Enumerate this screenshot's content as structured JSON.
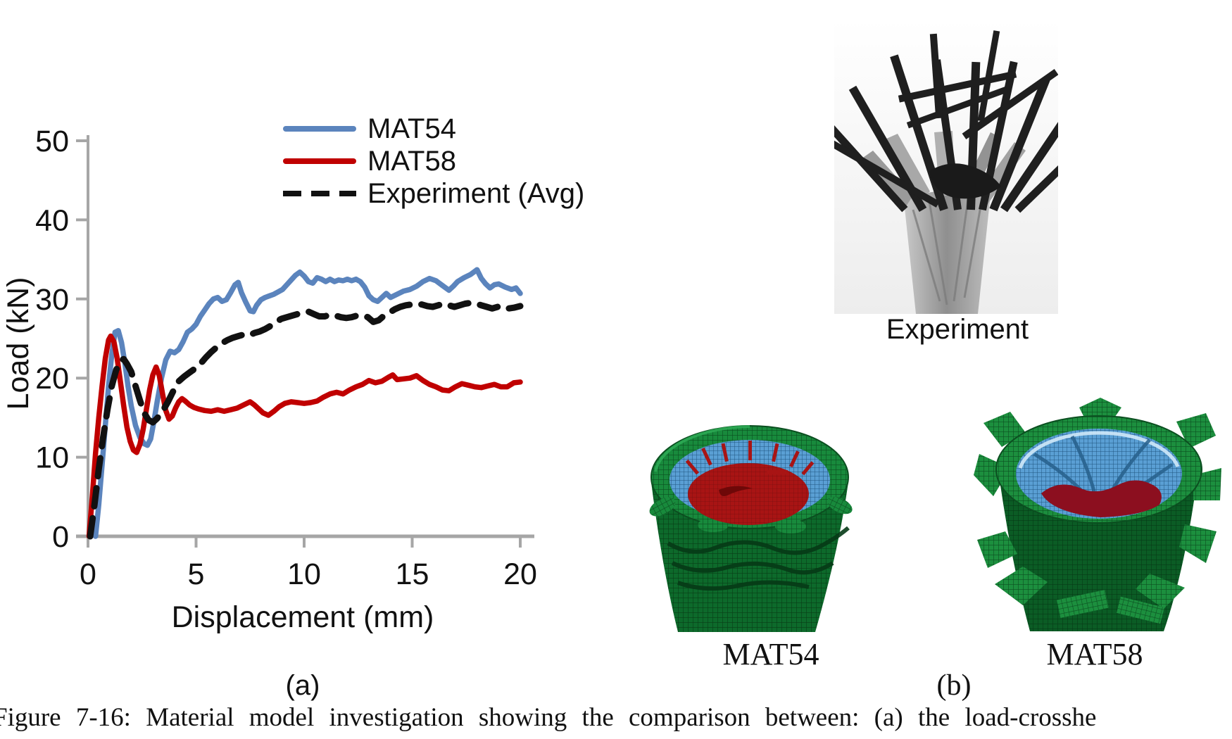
{
  "figure": {
    "caption": "Figure 7-16: Material model investigation showing the comparison between: (a) the load-crosshe",
    "panel_a_label": "(a)",
    "panel_b_label": "(b)"
  },
  "panel_b": {
    "experiment_label": "Experiment",
    "mat54_label": "MAT54",
    "mat58_label": "MAT58"
  },
  "colors": {
    "mat54_line": "#5b84bd",
    "mat58_line": "#c00000",
    "experiment_line": "#111111",
    "axis_gray": "#a6a6a6",
    "sim_green": "#188a3c",
    "sim_blue": "#5a9fd4",
    "sim_red": "#a81414"
  },
  "chart_data": {
    "type": "line",
    "title": "",
    "xlabel": "Displacement (mm)",
    "ylabel": "Load (kN)",
    "xlim": [
      0,
      20
    ],
    "ylim": [
      0,
      50
    ],
    "x_ticks": [
      0,
      5,
      10,
      15,
      20
    ],
    "y_ticks": [
      0,
      10,
      20,
      30,
      40,
      50
    ],
    "grid": false,
    "legend_position": "top-right-inside",
    "series": [
      {
        "name": "MAT54",
        "color": "#5b84bd",
        "style": "solid",
        "points": [
          [
            0.35,
            0
          ],
          [
            0.5,
            4
          ],
          [
            0.65,
            9
          ],
          [
            0.8,
            14
          ],
          [
            0.95,
            19
          ],
          [
            1.1,
            23
          ],
          [
            1.25,
            25.8
          ],
          [
            1.4,
            26
          ],
          [
            1.55,
            24.5
          ],
          [
            1.7,
            22
          ],
          [
            1.85,
            19
          ],
          [
            2.0,
            16.5
          ],
          [
            2.2,
            14
          ],
          [
            2.4,
            12.5
          ],
          [
            2.6,
            11.7
          ],
          [
            2.75,
            11.5
          ],
          [
            2.9,
            12.3
          ],
          [
            3.05,
            14.5
          ],
          [
            3.2,
            17
          ],
          [
            3.4,
            20
          ],
          [
            3.6,
            22.3
          ],
          [
            3.8,
            23.4
          ],
          [
            4.0,
            23.2
          ],
          [
            4.2,
            23.6
          ],
          [
            4.4,
            24.6
          ],
          [
            4.6,
            25.8
          ],
          [
            4.8,
            26.2
          ],
          [
            5.0,
            26.8
          ],
          [
            5.2,
            27.8
          ],
          [
            5.4,
            28.6
          ],
          [
            5.6,
            29.4
          ],
          [
            5.8,
            30.0
          ],
          [
            6.0,
            30.2
          ],
          [
            6.2,
            29.7
          ],
          [
            6.4,
            29.9
          ],
          [
            6.6,
            30.8
          ],
          [
            6.8,
            31.8
          ],
          [
            6.95,
            32.1
          ],
          [
            7.1,
            30.8
          ],
          [
            7.3,
            29.6
          ],
          [
            7.5,
            28.5
          ],
          [
            7.65,
            28.4
          ],
          [
            7.8,
            29.2
          ],
          [
            8.0,
            29.9
          ],
          [
            8.2,
            30.2
          ],
          [
            8.4,
            30.4
          ],
          [
            8.6,
            30.6
          ],
          [
            8.8,
            30.9
          ],
          [
            9.0,
            31.2
          ],
          [
            9.2,
            31.8
          ],
          [
            9.4,
            32.4
          ],
          [
            9.6,
            33.0
          ],
          [
            9.8,
            33.4
          ],
          [
            10.0,
            32.9
          ],
          [
            10.2,
            32.2
          ],
          [
            10.4,
            32.0
          ],
          [
            10.6,
            32.7
          ],
          [
            10.8,
            32.5
          ],
          [
            11.0,
            32.2
          ],
          [
            11.2,
            32.5
          ],
          [
            11.4,
            32.2
          ],
          [
            11.6,
            32.4
          ],
          [
            11.8,
            32.3
          ],
          [
            12.0,
            32.5
          ],
          [
            12.2,
            32.3
          ],
          [
            12.4,
            32.5
          ],
          [
            12.6,
            32.2
          ],
          [
            12.8,
            31.5
          ],
          [
            13.0,
            30.4
          ],
          [
            13.2,
            29.9
          ],
          [
            13.4,
            29.7
          ],
          [
            13.6,
            30.2
          ],
          [
            13.8,
            30.7
          ],
          [
            14.0,
            30.2
          ],
          [
            14.3,
            30.6
          ],
          [
            14.6,
            31.0
          ],
          [
            14.9,
            31.2
          ],
          [
            15.2,
            31.6
          ],
          [
            15.5,
            32.2
          ],
          [
            15.8,
            32.6
          ],
          [
            16.1,
            32.3
          ],
          [
            16.4,
            31.7
          ],
          [
            16.7,
            31.1
          ],
          [
            16.9,
            31.6
          ],
          [
            17.1,
            32.2
          ],
          [
            17.4,
            32.7
          ],
          [
            17.7,
            33.1
          ],
          [
            18.0,
            33.7
          ],
          [
            18.2,
            32.6
          ],
          [
            18.4,
            31.9
          ],
          [
            18.6,
            31.4
          ],
          [
            18.8,
            31.8
          ],
          [
            19.0,
            31.9
          ],
          [
            19.3,
            31.5
          ],
          [
            19.6,
            31.2
          ],
          [
            19.8,
            31.4
          ],
          [
            20.0,
            30.7
          ]
        ]
      },
      {
        "name": "MAT58",
        "color": "#c00000",
        "style": "solid",
        "points": [
          [
            0.05,
            0
          ],
          [
            0.2,
            5
          ],
          [
            0.35,
            10.5
          ],
          [
            0.5,
            15
          ],
          [
            0.65,
            19
          ],
          [
            0.8,
            22.5
          ],
          [
            0.95,
            24.8
          ],
          [
            1.05,
            25.3
          ],
          [
            1.2,
            24.6
          ],
          [
            1.35,
            22.5
          ],
          [
            1.5,
            19.5
          ],
          [
            1.65,
            16.5
          ],
          [
            1.8,
            13.8
          ],
          [
            1.95,
            12
          ],
          [
            2.1,
            10.9
          ],
          [
            2.25,
            10.6
          ],
          [
            2.4,
            11.6
          ],
          [
            2.55,
            13.5
          ],
          [
            2.7,
            16
          ],
          [
            2.85,
            18.5
          ],
          [
            3.0,
            20.4
          ],
          [
            3.15,
            21.4
          ],
          [
            3.3,
            20.3
          ],
          [
            3.45,
            18
          ],
          [
            3.6,
            15.9
          ],
          [
            3.75,
            14.8
          ],
          [
            3.9,
            15.2
          ],
          [
            4.05,
            16.2
          ],
          [
            4.2,
            17
          ],
          [
            4.35,
            17.4
          ],
          [
            4.5,
            17.1
          ],
          [
            4.7,
            16.6
          ],
          [
            4.9,
            16.3
          ],
          [
            5.1,
            16.1
          ],
          [
            5.4,
            15.9
          ],
          [
            5.7,
            15.8
          ],
          [
            6.0,
            16.0
          ],
          [
            6.3,
            15.8
          ],
          [
            6.6,
            16.0
          ],
          [
            6.9,
            16.2
          ],
          [
            7.2,
            16.6
          ],
          [
            7.5,
            17.0
          ],
          [
            7.7,
            16.6
          ],
          [
            7.9,
            16.1
          ],
          [
            8.1,
            15.6
          ],
          [
            8.35,
            15.3
          ],
          [
            8.6,
            15.8
          ],
          [
            8.85,
            16.4
          ],
          [
            9.1,
            16.8
          ],
          [
            9.4,
            17.0
          ],
          [
            9.7,
            16.9
          ],
          [
            10.0,
            16.8
          ],
          [
            10.3,
            16.9
          ],
          [
            10.6,
            17.1
          ],
          [
            10.9,
            17.6
          ],
          [
            11.2,
            18.0
          ],
          [
            11.5,
            18.2
          ],
          [
            11.8,
            18.0
          ],
          [
            12.1,
            18.5
          ],
          [
            12.4,
            18.9
          ],
          [
            12.7,
            19.2
          ],
          [
            13.0,
            19.7
          ],
          [
            13.3,
            19.4
          ],
          [
            13.6,
            19.6
          ],
          [
            13.9,
            20.1
          ],
          [
            14.1,
            20.4
          ],
          [
            14.3,
            19.8
          ],
          [
            14.6,
            19.9
          ],
          [
            14.9,
            20.0
          ],
          [
            15.2,
            20.3
          ],
          [
            15.5,
            19.7
          ],
          [
            15.8,
            19.2
          ],
          [
            16.1,
            18.9
          ],
          [
            16.4,
            18.5
          ],
          [
            16.7,
            18.4
          ],
          [
            17.0,
            18.9
          ],
          [
            17.3,
            19.3
          ],
          [
            17.6,
            19.1
          ],
          [
            17.9,
            18.9
          ],
          [
            18.2,
            18.8
          ],
          [
            18.5,
            19.0
          ],
          [
            18.8,
            19.2
          ],
          [
            19.1,
            18.9
          ],
          [
            19.4,
            18.9
          ],
          [
            19.7,
            19.4
          ],
          [
            20.0,
            19.5
          ]
        ]
      },
      {
        "name": "Experiment (Avg)",
        "color": "#111111",
        "style": "dashed",
        "points": [
          [
            0.1,
            0
          ],
          [
            0.3,
            4
          ],
          [
            0.5,
            8.5
          ],
          [
            0.7,
            12.5
          ],
          [
            0.9,
            16
          ],
          [
            1.1,
            19
          ],
          [
            1.3,
            21
          ],
          [
            1.5,
            22.2
          ],
          [
            1.65,
            22.4
          ],
          [
            1.8,
            21.8
          ],
          [
            2.0,
            20.8
          ],
          [
            2.2,
            19
          ],
          [
            2.4,
            17.2
          ],
          [
            2.6,
            15.6
          ],
          [
            2.8,
            14.7
          ],
          [
            3.0,
            14.4
          ],
          [
            3.2,
            14.9
          ],
          [
            3.45,
            15.8
          ],
          [
            3.7,
            17
          ],
          [
            3.95,
            18.4
          ],
          [
            4.2,
            19.6
          ],
          [
            4.45,
            20.2
          ],
          [
            4.7,
            20.7
          ],
          [
            4.95,
            21.2
          ],
          [
            5.2,
            21.8
          ],
          [
            5.45,
            22.6
          ],
          [
            5.7,
            23.3
          ],
          [
            5.95,
            23.9
          ],
          [
            6.2,
            24.4
          ],
          [
            6.45,
            24.8
          ],
          [
            6.7,
            25.1
          ],
          [
            6.95,
            25.3
          ],
          [
            7.2,
            25.5
          ],
          [
            7.45,
            25.4
          ],
          [
            7.7,
            25.7
          ],
          [
            7.95,
            25.9
          ],
          [
            8.2,
            26.2
          ],
          [
            8.45,
            26.6
          ],
          [
            8.7,
            27.1
          ],
          [
            8.95,
            27.5
          ],
          [
            9.2,
            27.7
          ],
          [
            9.45,
            27.9
          ],
          [
            9.7,
            28.1
          ],
          [
            9.95,
            28.3
          ],
          [
            10.2,
            28.4
          ],
          [
            10.45,
            28.1
          ],
          [
            10.7,
            27.8
          ],
          [
            10.95,
            27.8
          ],
          [
            11.2,
            28.0
          ],
          [
            11.45,
            27.9
          ],
          [
            11.7,
            27.7
          ],
          [
            11.95,
            27.6
          ],
          [
            12.2,
            27.7
          ],
          [
            12.45,
            27.9
          ],
          [
            12.7,
            27.9
          ],
          [
            12.95,
            27.7
          ],
          [
            13.2,
            27.1
          ],
          [
            13.45,
            27.3
          ],
          [
            13.7,
            27.9
          ],
          [
            13.95,
            28.3
          ],
          [
            14.2,
            28.7
          ],
          [
            14.45,
            29.0
          ],
          [
            14.7,
            29.2
          ],
          [
            14.95,
            29.3
          ],
          [
            15.2,
            29.4
          ],
          [
            15.45,
            29.3
          ],
          [
            15.7,
            29.1
          ],
          [
            15.95,
            29.0
          ],
          [
            16.2,
            29.2
          ],
          [
            16.45,
            29.4
          ],
          [
            16.7,
            29.2
          ],
          [
            16.95,
            29.0
          ],
          [
            17.2,
            29.2
          ],
          [
            17.45,
            29.4
          ],
          [
            17.7,
            29.5
          ],
          [
            17.95,
            29.4
          ],
          [
            18.2,
            29.2
          ],
          [
            18.45,
            29.0
          ],
          [
            18.7,
            28.8
          ],
          [
            18.95,
            29.0
          ],
          [
            19.2,
            29.1
          ],
          [
            19.45,
            28.8
          ],
          [
            19.7,
            28.9
          ],
          [
            20.0,
            29.1
          ]
        ]
      }
    ]
  }
}
